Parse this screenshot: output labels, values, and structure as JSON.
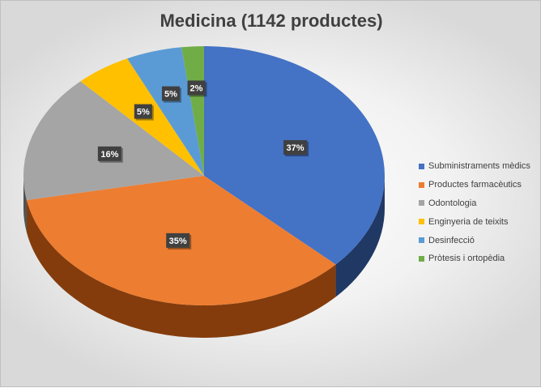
{
  "chart_data": {
    "type": "pie",
    "title": "Medicina (1142 productes)",
    "categories": [
      "Subministraments mèdics",
      "Productes farmacèutics",
      "Odontologia",
      "Enginyeria de teixits",
      "Desinfecció",
      "Pròtesis i ortopèdia"
    ],
    "values": [
      37,
      35,
      16,
      5,
      5,
      2
    ],
    "labels": [
      "37%",
      "35%",
      "16%",
      "5%",
      "5%",
      "2%"
    ],
    "colors": [
      "#4472C4",
      "#ED7D31",
      "#A5A5A5",
      "#FFC000",
      "#5B9BD5",
      "#70AD47"
    ],
    "side_colors": [
      "#203864",
      "#843C0C",
      "#525252",
      "#7F6000",
      "#1F4E79",
      "#375623"
    ],
    "style": "3d",
    "legend": "right"
  }
}
